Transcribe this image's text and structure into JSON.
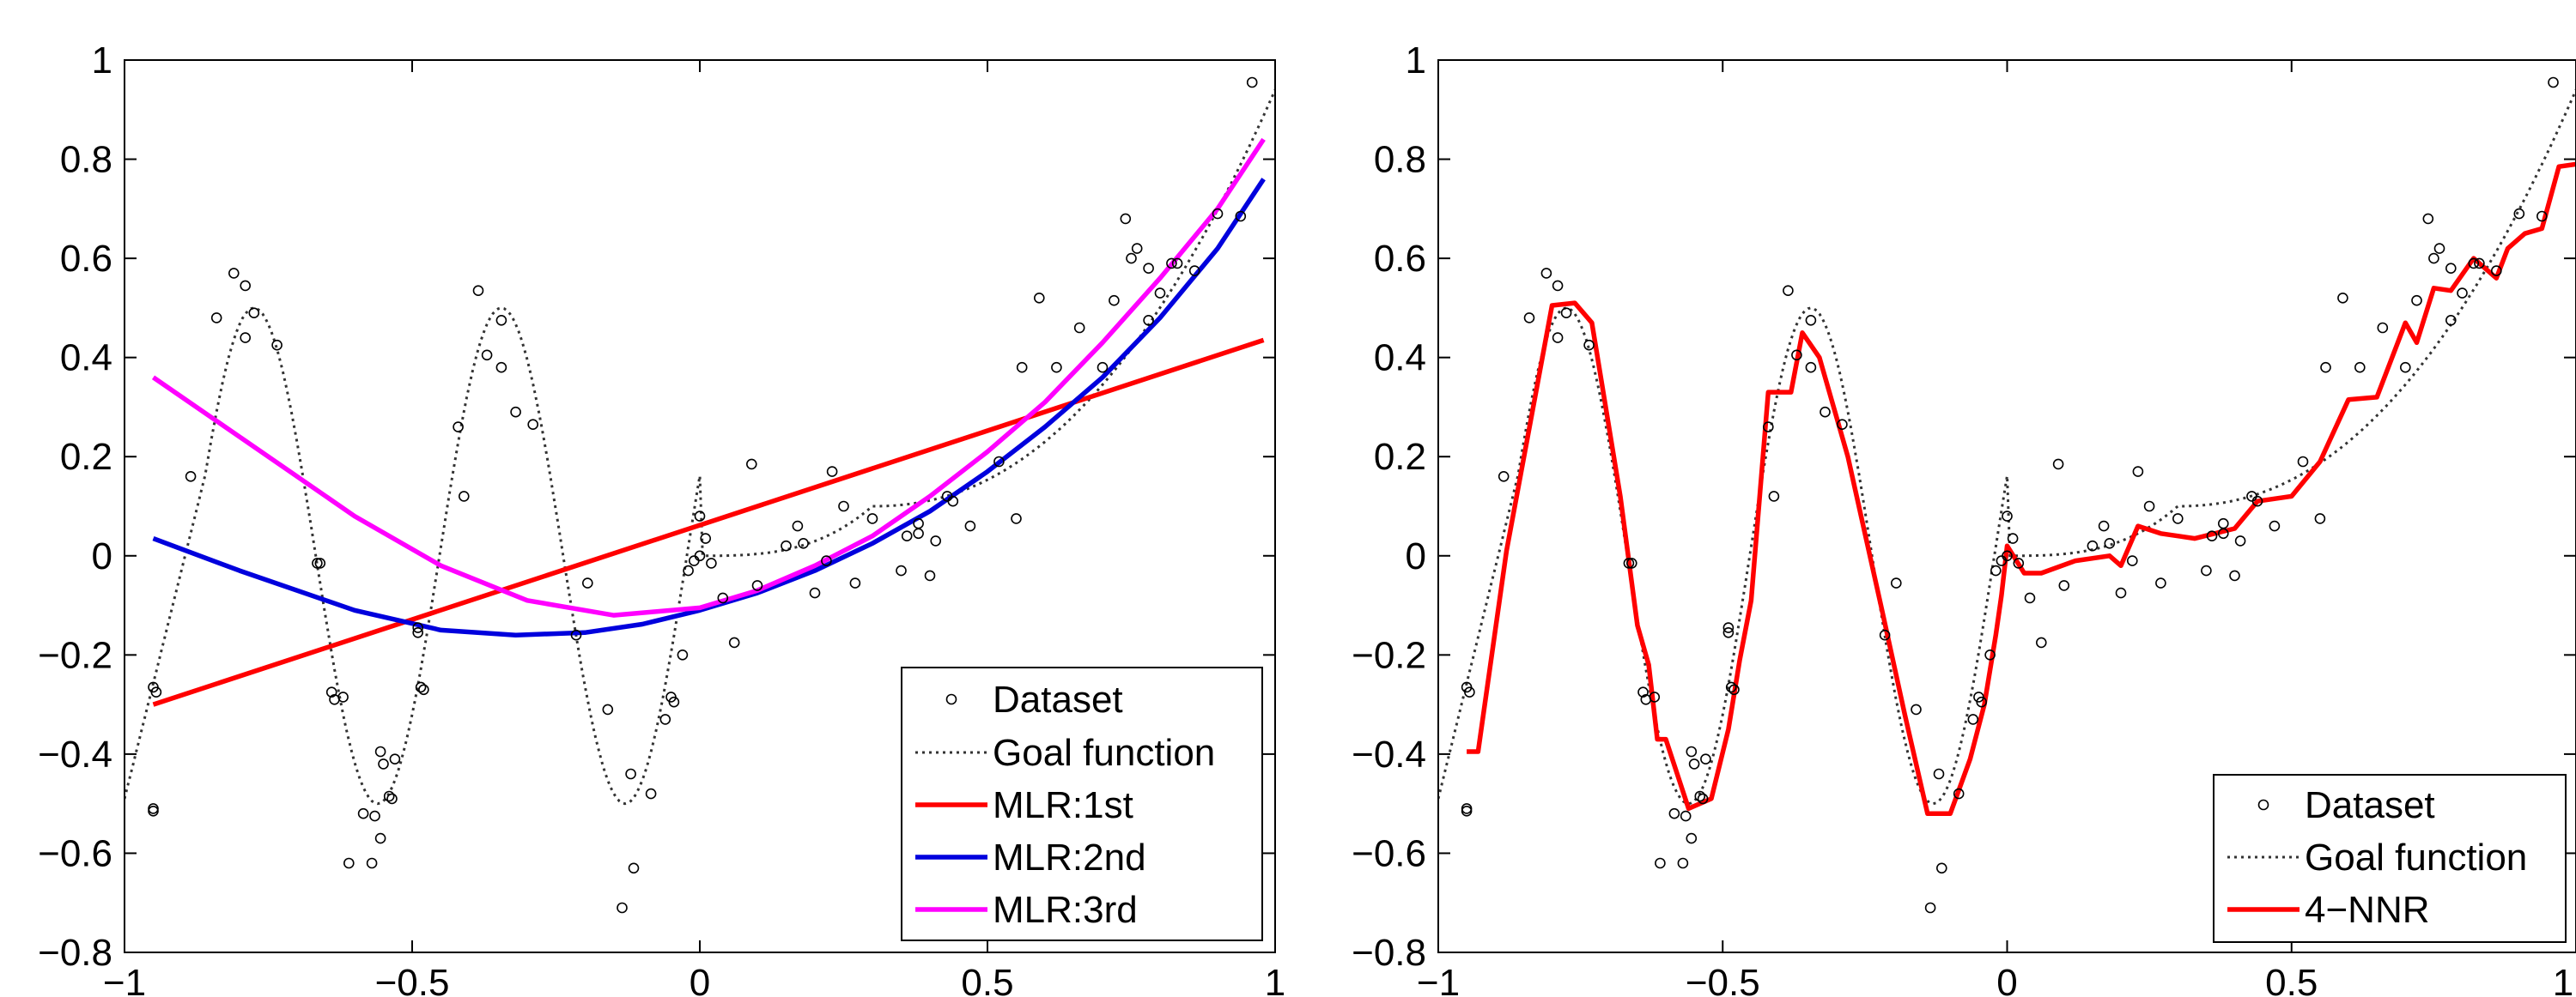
{
  "chart_data": [
    {
      "type": "line",
      "title": "",
      "xlabel": "",
      "ylabel": "",
      "xlim": [
        -1,
        1
      ],
      "ylim": [
        -0.8,
        1
      ],
      "xticks": [
        -1,
        -0.5,
        0,
        0.5,
        1
      ],
      "xtick_labels": [
        "−1",
        "−0.5",
        "0",
        "0.5",
        "1"
      ],
      "yticks": [
        -0.8,
        -0.6,
        -0.4,
        -0.2,
        0,
        0.2,
        0.4,
        0.6,
        0.8,
        1
      ],
      "ytick_labels": [
        "−0.8",
        "−0.6",
        "−0.4",
        "−0.2",
        "0",
        "0.2",
        "0.4",
        "0.6",
        "0.8",
        "1"
      ],
      "grid": false,
      "legend_position": "bottom-right",
      "series": [
        {
          "name": "Dataset",
          "kind": "scatter",
          "color": "#000000"
        },
        {
          "name": "Goal function",
          "kind": "dotted-line",
          "color": "#333333"
        },
        {
          "name": "MLR:1st",
          "kind": "line",
          "color": "#ff0000",
          "x": [
            -0.95,
            0.98
          ],
          "y": [
            -0.3,
            0.435
          ]
        },
        {
          "name": "MLR:2nd",
          "kind": "line",
          "color": "#0000dd",
          "x": [
            -0.95,
            -0.8,
            -0.6,
            -0.45,
            -0.32,
            -0.2,
            -0.1,
            0,
            0.1,
            0.2,
            0.3,
            0.4,
            0.5,
            0.6,
            0.7,
            0.8,
            0.9,
            0.98
          ],
          "y": [
            0.035,
            -0.03,
            -0.11,
            -0.15,
            -0.16,
            -0.155,
            -0.138,
            -0.11,
            -0.075,
            -0.03,
            0.025,
            0.09,
            0.17,
            0.26,
            0.36,
            0.48,
            0.62,
            0.76
          ]
        },
        {
          "name": "MLR:3rd",
          "kind": "line",
          "color": "#ff00ff",
          "x": [
            -0.95,
            -0.8,
            -0.6,
            -0.45,
            -0.3,
            -0.15,
            0,
            0.1,
            0.2,
            0.3,
            0.4,
            0.5,
            0.6,
            0.7,
            0.8,
            0.9,
            0.98
          ],
          "y": [
            0.36,
            0.24,
            0.08,
            -0.02,
            -0.09,
            -0.12,
            -0.105,
            -0.07,
            -0.02,
            0.04,
            0.12,
            0.21,
            0.31,
            0.43,
            0.56,
            0.7,
            0.84
          ]
        }
      ]
    },
    {
      "type": "line",
      "title": "",
      "xlabel": "",
      "ylabel": "",
      "xlim": [
        -1,
        1
      ],
      "ylim": [
        -0.8,
        1
      ],
      "xticks": [
        -1,
        -0.5,
        0,
        0.5,
        1
      ],
      "xtick_labels": [
        "−1",
        "−0.5",
        "0",
        "0.5",
        "1"
      ],
      "yticks": [
        -0.8,
        -0.6,
        -0.4,
        -0.2,
        0,
        0.2,
        0.4,
        0.6,
        0.8,
        1
      ],
      "ytick_labels": [
        "−0.8",
        "−0.6",
        "−0.4",
        "−0.2",
        "0",
        "0.2",
        "0.4",
        "0.6",
        "0.8",
        "1"
      ],
      "grid": false,
      "legend_position": "bottom-right",
      "series": [
        {
          "name": "Dataset",
          "kind": "scatter",
          "color": "#000000"
        },
        {
          "name": "Goal function",
          "kind": "dotted-line",
          "color": "#333333"
        },
        {
          "name": "4−NNR",
          "kind": "line",
          "color": "#ff0000",
          "x": [
            -0.95,
            -0.93,
            -0.88,
            -0.8,
            -0.76,
            -0.73,
            -0.68,
            -0.65,
            -0.63,
            -0.615,
            -0.6,
            -0.56,
            -0.52,
            -0.49,
            -0.47,
            -0.45,
            -0.42,
            -0.38,
            -0.36,
            -0.33,
            -0.28,
            -0.22,
            -0.18,
            -0.14,
            -0.1,
            -0.065,
            -0.04,
            -0.02,
            -0.01,
            0.0,
            0.03,
            0.06,
            0.12,
            0.18,
            0.2,
            0.23,
            0.27,
            0.33,
            0.4,
            0.44,
            0.5,
            0.55,
            0.6,
            0.65,
            0.7,
            0.72,
            0.75,
            0.78,
            0.82,
            0.86,
            0.88,
            0.91,
            0.94,
            0.97,
            1.0
          ],
          "y": [
            -0.395,
            -0.395,
            0.01,
            0.505,
            0.51,
            0.47,
            0.12,
            -0.14,
            -0.22,
            -0.37,
            -0.37,
            -0.51,
            -0.49,
            -0.35,
            -0.21,
            -0.09,
            0.33,
            0.33,
            0.45,
            0.4,
            0.2,
            -0.11,
            -0.32,
            -0.52,
            -0.52,
            -0.41,
            -0.3,
            -0.16,
            -0.08,
            0.02,
            -0.035,
            -0.035,
            -0.01,
            0.0,
            -0.02,
            0.06,
            0.045,
            0.035,
            0.055,
            0.11,
            0.12,
            0.19,
            0.315,
            0.32,
            0.47,
            0.43,
            0.54,
            0.535,
            0.6,
            0.56,
            0.62,
            0.65,
            0.66,
            0.785,
            0.79
          ]
        }
      ]
    }
  ],
  "dataset_points": [
    [
      -0.95,
      -0.265
    ],
    [
      -0.945,
      -0.275
    ],
    [
      -0.95,
      -0.515
    ],
    [
      -0.95,
      -0.51
    ],
    [
      -0.885,
      0.16
    ],
    [
      -0.84,
      0.48
    ],
    [
      -0.81,
      0.57
    ],
    [
      -0.79,
      0.44
    ],
    [
      -0.79,
      0.545
    ],
    [
      -0.775,
      0.49
    ],
    [
      -0.735,
      0.425
    ],
    [
      -0.665,
      -0.015
    ],
    [
      -0.66,
      -0.015
    ],
    [
      -0.64,
      -0.275
    ],
    [
      -0.635,
      -0.29
    ],
    [
      -0.62,
      -0.285
    ],
    [
      -0.61,
      -0.62
    ],
    [
      -0.585,
      -0.52
    ],
    [
      -0.565,
      -0.525
    ],
    [
      -0.57,
      -0.62
    ],
    [
      -0.555,
      -0.57
    ],
    [
      -0.555,
      -0.395
    ],
    [
      -0.55,
      -0.42
    ],
    [
      -0.535,
      -0.49
    ],
    [
      -0.54,
      -0.485
    ],
    [
      -0.53,
      -0.41
    ],
    [
      -0.49,
      -0.145
    ],
    [
      -0.49,
      -0.155
    ],
    [
      -0.485,
      -0.265
    ],
    [
      -0.48,
      -0.27
    ],
    [
      -0.42,
      0.26
    ],
    [
      -0.41,
      0.12
    ],
    [
      -0.385,
      0.535
    ],
    [
      -0.37,
      0.405
    ],
    [
      -0.345,
      0.38
    ],
    [
      -0.345,
      0.475
    ],
    [
      -0.32,
      0.29
    ],
    [
      -0.29,
      0.265
    ],
    [
      -0.215,
      -0.16
    ],
    [
      -0.195,
      -0.055
    ],
    [
      -0.16,
      -0.31
    ],
    [
      -0.135,
      -0.71
    ],
    [
      -0.12,
      -0.44
    ],
    [
      -0.115,
      -0.63
    ],
    [
      -0.085,
      -0.48
    ],
    [
      -0.06,
      -0.33
    ],
    [
      -0.05,
      -0.285
    ],
    [
      -0.045,
      -0.295
    ],
    [
      -0.03,
      -0.2
    ],
    [
      -0.02,
      -0.03
    ],
    [
      -0.01,
      -0.01
    ],
    [
      0.0,
      0.0
    ],
    [
      0.0,
      0.08
    ],
    [
      0.01,
      0.035
    ],
    [
      0.02,
      -0.015
    ],
    [
      0.04,
      -0.085
    ],
    [
      0.06,
      -0.175
    ],
    [
      0.09,
      0.185
    ],
    [
      0.1,
      -0.06
    ],
    [
      0.15,
      0.02
    ],
    [
      0.17,
      0.06
    ],
    [
      0.18,
      0.025
    ],
    [
      0.2,
      -0.075
    ],
    [
      0.22,
      -0.01
    ],
    [
      0.23,
      0.17
    ],
    [
      0.25,
      0.1
    ],
    [
      0.27,
      -0.055
    ],
    [
      0.3,
      0.075
    ],
    [
      0.35,
      -0.03
    ],
    [
      0.36,
      0.04
    ],
    [
      0.38,
      0.045
    ],
    [
      0.38,
      0.065
    ],
    [
      0.4,
      -0.04
    ],
    [
      0.41,
      0.03
    ],
    [
      0.43,
      0.12
    ],
    [
      0.44,
      0.11
    ],
    [
      0.47,
      0.06
    ],
    [
      0.52,
      0.19
    ],
    [
      0.55,
      0.075
    ],
    [
      0.56,
      0.38
    ],
    [
      0.59,
      0.52
    ],
    [
      0.62,
      0.38
    ],
    [
      0.66,
      0.46
    ],
    [
      0.7,
      0.38
    ],
    [
      0.72,
      0.515
    ],
    [
      0.74,
      0.68
    ],
    [
      0.75,
      0.6
    ],
    [
      0.76,
      0.62
    ],
    [
      0.78,
      0.58
    ],
    [
      0.78,
      0.475
    ],
    [
      0.8,
      0.53
    ],
    [
      0.82,
      0.59
    ],
    [
      0.83,
      0.59
    ],
    [
      0.86,
      0.575
    ],
    [
      0.9,
      0.69
    ],
    [
      0.94,
      0.685
    ],
    [
      0.96,
      0.955
    ]
  ]
}
